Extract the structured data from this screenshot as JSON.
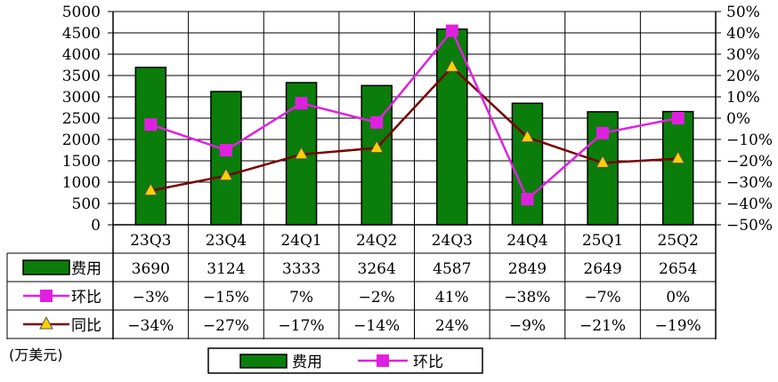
{
  "chart_data": {
    "type": "bar",
    "categories": [
      "23Q3",
      "23Q4",
      "24Q1",
      "24Q2",
      "24Q3",
      "24Q4",
      "25Q1",
      "25Q2"
    ],
    "series": [
      {
        "name": "费用",
        "type": "bar",
        "axis": "left",
        "color": "#0a7d0a",
        "values": [
          3690,
          3124,
          3333,
          3264,
          4587,
          2849,
          2649,
          2654
        ]
      },
      {
        "name": "环比",
        "type": "line",
        "axis": "right",
        "color": "#e020e0",
        "values": [
          -3,
          -15,
          7,
          -2,
          41,
          -38,
          -7,
          0
        ],
        "labels": [
          "-3%",
          "-15%",
          "7%",
          "-2%",
          "41%",
          "-38%",
          "-7%",
          "0%"
        ]
      },
      {
        "name": "同比",
        "type": "line",
        "axis": "right",
        "color": "#7a0000",
        "marker_color": "#ffd000",
        "values": [
          -34,
          -27,
          -17,
          -14,
          24,
          -9,
          -21,
          -19
        ],
        "labels": [
          "-34%",
          "-27%",
          "-17%",
          "-14%",
          "24%",
          "-9%",
          "-21%",
          "-19%"
        ]
      }
    ],
    "y_left": {
      "min": 0,
      "max": 5000,
      "step": 500,
      "ticks": [
        "0",
        "500",
        "1000",
        "1500",
        "2000",
        "2500",
        "3000",
        "3500",
        "4000",
        "4500",
        "5000"
      ]
    },
    "y_right": {
      "min": -50,
      "max": 50,
      "step": 10,
      "ticks": [
        "-50%",
        "-40%",
        "-30%",
        "-20%",
        "-10%",
        "0%",
        "10%",
        "20%",
        "30%",
        "40%",
        "50%"
      ]
    },
    "unit_label": "(万美元)",
    "legend_bottom": [
      "费用",
      "环比"
    ],
    "grid": true,
    "legend": "bottom"
  }
}
